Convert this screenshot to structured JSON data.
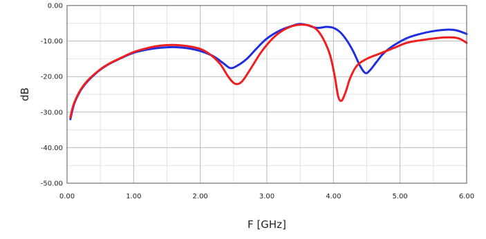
{
  "chart_data": {
    "type": "line",
    "title": "",
    "xlabel": "F [GHz]",
    "ylabel": "dB",
    "xlim": [
      0,
      6
    ],
    "ylim": [
      -50,
      0
    ],
    "x_ticks": [
      "0.00",
      "1.00",
      "2.00",
      "3.00",
      "4.00",
      "5.00",
      "6.00"
    ],
    "y_ticks": [
      "0.00",
      "-10.00",
      "-20.00",
      "-30.00",
      "-40.00",
      "-50.00"
    ],
    "x_tick_values": [
      0,
      1,
      2,
      3,
      4,
      5,
      6
    ],
    "y_tick_values": [
      0,
      -10,
      -20,
      -30,
      -40,
      -50
    ],
    "grid": true,
    "series": [
      {
        "color": "#1f2fe0",
        "points": [
          [
            0.05,
            -32.0
          ],
          [
            0.08,
            -29.5
          ],
          [
            0.12,
            -27.0
          ],
          [
            0.2,
            -24.0
          ],
          [
            0.3,
            -21.5
          ],
          [
            0.45,
            -18.8
          ],
          [
            0.6,
            -16.8
          ],
          [
            0.8,
            -14.9
          ],
          [
            1.0,
            -13.3
          ],
          [
            1.2,
            -12.4
          ],
          [
            1.4,
            -11.9
          ],
          [
            1.6,
            -11.7
          ],
          [
            1.8,
            -12.0
          ],
          [
            2.0,
            -12.8
          ],
          [
            2.2,
            -14.3
          ],
          [
            2.35,
            -16.3
          ],
          [
            2.45,
            -17.6
          ],
          [
            2.55,
            -17.0
          ],
          [
            2.7,
            -15.0
          ],
          [
            2.85,
            -12.0
          ],
          [
            3.0,
            -9.3
          ],
          [
            3.2,
            -7.0
          ],
          [
            3.4,
            -5.6
          ],
          [
            3.5,
            -5.2
          ],
          [
            3.6,
            -5.5
          ],
          [
            3.75,
            -6.3
          ],
          [
            3.9,
            -6.0
          ],
          [
            4.0,
            -6.3
          ],
          [
            4.1,
            -7.5
          ],
          [
            4.2,
            -9.8
          ],
          [
            4.3,
            -13.0
          ],
          [
            4.4,
            -17.0
          ],
          [
            4.48,
            -19.0
          ],
          [
            4.55,
            -18.2
          ],
          [
            4.65,
            -15.8
          ],
          [
            4.75,
            -13.5
          ],
          [
            4.9,
            -11.3
          ],
          [
            5.1,
            -9.2
          ],
          [
            5.3,
            -8.0
          ],
          [
            5.5,
            -7.2
          ],
          [
            5.7,
            -6.8
          ],
          [
            5.85,
            -7.0
          ],
          [
            6.0,
            -8.0
          ]
        ]
      },
      {
        "color": "#f01e1e",
        "points": [
          [
            0.05,
            -31.5
          ],
          [
            0.08,
            -29.0
          ],
          [
            0.12,
            -26.8
          ],
          [
            0.2,
            -23.8
          ],
          [
            0.3,
            -21.3
          ],
          [
            0.45,
            -18.7
          ],
          [
            0.6,
            -16.7
          ],
          [
            0.8,
            -14.8
          ],
          [
            1.0,
            -13.1
          ],
          [
            1.2,
            -12.0
          ],
          [
            1.4,
            -11.3
          ],
          [
            1.6,
            -11.1
          ],
          [
            1.8,
            -11.4
          ],
          [
            2.0,
            -12.2
          ],
          [
            2.15,
            -13.8
          ],
          [
            2.3,
            -16.5
          ],
          [
            2.42,
            -20.0
          ],
          [
            2.52,
            -22.0
          ],
          [
            2.62,
            -21.5
          ],
          [
            2.75,
            -18.0
          ],
          [
            2.9,
            -13.5
          ],
          [
            3.05,
            -10.0
          ],
          [
            3.2,
            -7.5
          ],
          [
            3.35,
            -6.0
          ],
          [
            3.5,
            -5.4
          ],
          [
            3.65,
            -5.7
          ],
          [
            3.75,
            -6.8
          ],
          [
            3.85,
            -9.5
          ],
          [
            3.95,
            -14.0
          ],
          [
            4.02,
            -20.0
          ],
          [
            4.07,
            -25.5
          ],
          [
            4.12,
            -26.8
          ],
          [
            4.18,
            -24.5
          ],
          [
            4.25,
            -20.5
          ],
          [
            4.35,
            -17.0
          ],
          [
            4.5,
            -15.0
          ],
          [
            4.7,
            -13.5
          ],
          [
            4.9,
            -12.0
          ],
          [
            5.1,
            -10.5
          ],
          [
            5.3,
            -9.8
          ],
          [
            5.5,
            -9.3
          ],
          [
            5.65,
            -9.0
          ],
          [
            5.8,
            -9.0
          ],
          [
            5.9,
            -9.4
          ],
          [
            6.0,
            -10.5
          ]
        ]
      }
    ]
  }
}
